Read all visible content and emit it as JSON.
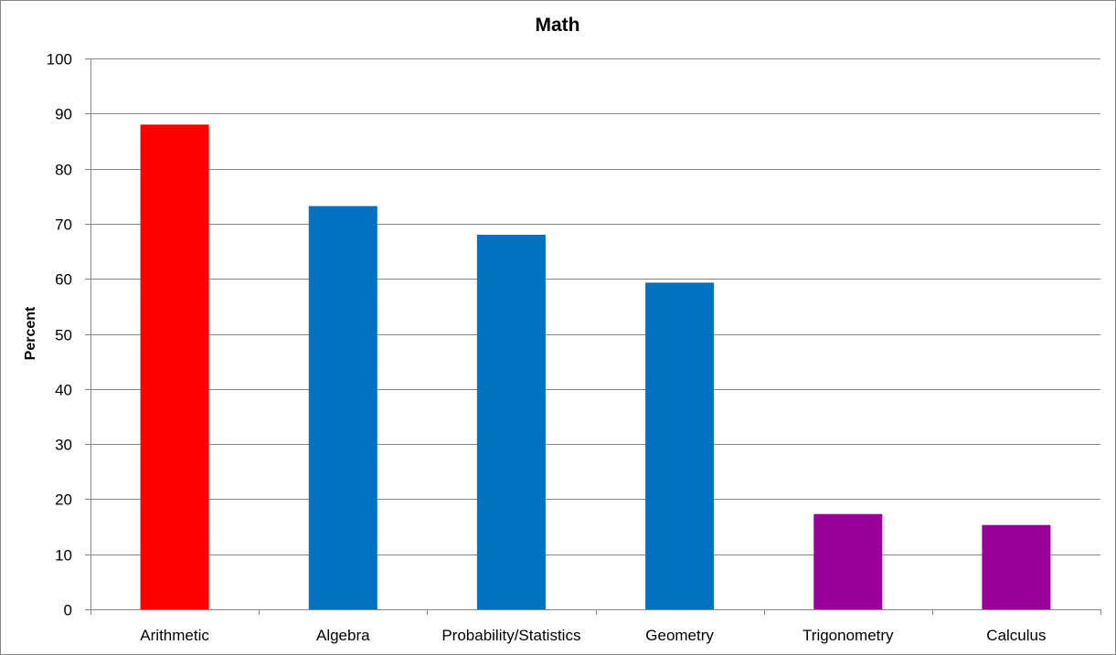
{
  "chart_data": {
    "type": "bar",
    "title": "Math",
    "xlabel": "",
    "ylabel": "Percent",
    "ylim": [
      0,
      100
    ],
    "yticks": [
      0,
      10,
      20,
      30,
      40,
      50,
      60,
      70,
      80,
      90,
      100
    ],
    "grid": true,
    "legend": "none",
    "categories": [
      "Arithmetic",
      "Algebra",
      "Probability/Statistics",
      "Geometry",
      "Trigonometry",
      "Calculus"
    ],
    "values": [
      88,
      73.2,
      68,
      59.3,
      17.3,
      15.3
    ],
    "colors": [
      "#ff0000",
      "#0070c0",
      "#0070c0",
      "#0070c0",
      "#990099",
      "#990099"
    ]
  },
  "style": {
    "grid_color": "#868686",
    "axis_color": "#868686",
    "frame_color": "#868686"
  }
}
